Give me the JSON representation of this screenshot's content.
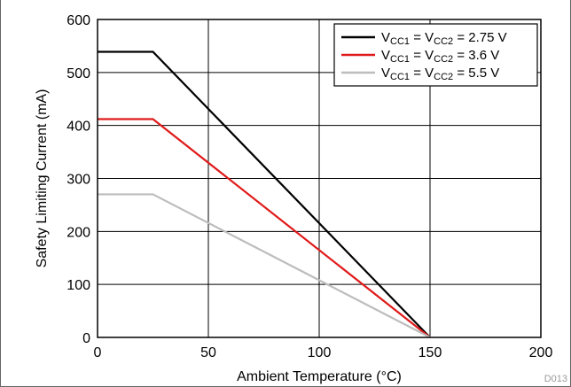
{
  "figure_id": "D013",
  "colors": {
    "series_1": "#000000",
    "series_2": "#e01a1a",
    "series_3": "#bdbdbd",
    "grid": "#000000"
  },
  "chart_data": {
    "type": "line",
    "xlabel": "Ambient Temperature (°C)",
    "ylabel": "Safety Limiting Current (mA)",
    "xlim": [
      0,
      200
    ],
    "ylim": [
      0,
      600
    ],
    "xticks": [
      0,
      50,
      100,
      150,
      200
    ],
    "yticks": [
      0,
      100,
      200,
      300,
      400,
      500,
      600
    ],
    "grid": true,
    "legend_position": "top-right",
    "series": [
      {
        "name": "V_CC1 = V_CC2 = 2.75 V",
        "legend": {
          "base": "V",
          "sub1": "CC1",
          "mid": " = V",
          "sub2": "CC2",
          "tail": " = 2.75 V"
        },
        "color": "#000000",
        "x": [
          0,
          25,
          150
        ],
        "y": [
          539,
          539,
          0
        ]
      },
      {
        "name": "V_CC1 = V_CC2 = 3.6 V",
        "legend": {
          "base": "V",
          "sub1": "CC1",
          "mid": " = V",
          "sub2": "CC2",
          "tail": " = 3.6 V"
        },
        "color": "#e01a1a",
        "x": [
          0,
          25,
          150
        ],
        "y": [
          412,
          412,
          0
        ]
      },
      {
        "name": "V_CC1 = V_CC2 = 5.5 V",
        "legend": {
          "base": "V",
          "sub1": "CC1",
          "mid": " = V",
          "sub2": "CC2",
          "tail": " = 5.5 V"
        },
        "color": "#bdbdbd",
        "x": [
          0,
          25,
          150
        ],
        "y": [
          270,
          270,
          0
        ]
      }
    ]
  }
}
